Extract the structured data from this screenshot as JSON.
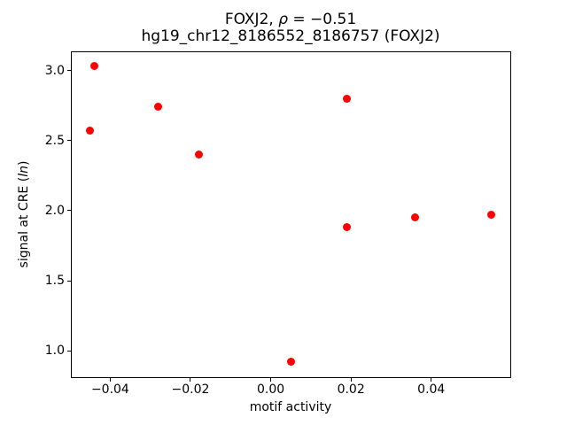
{
  "title": {
    "line1_prefix": "FOXJ2, ",
    "line1_rho": "ρ",
    "line1_suffix": " = −0.51",
    "line2": "hg19_chr12_8186552_8186757 (FOXJ2)"
  },
  "axes": {
    "xlabel": "motif activity",
    "ylabel_prefix": "signal at CRE (",
    "ylabel_italic": "ln",
    "ylabel_suffix": ")"
  },
  "chart_data": {
    "type": "scatter",
    "title": "FOXJ2, ρ = −0.51\nhg19_chr12_8186552_8186757 (FOXJ2)",
    "xlabel": "motif activity",
    "ylabel": "signal at CRE (ln)",
    "legend": "none",
    "grid": false,
    "marker_color": "#ff0000",
    "marker_diameter_px": 9,
    "xlim": [
      -0.0498,
      0.0597
    ],
    "ylim": [
      0.812,
      3.136
    ],
    "xticks": [
      -0.04,
      -0.02,
      0.0,
      0.02,
      0.04
    ],
    "xtick_labels": [
      "−0.04",
      "−0.02",
      "0.00",
      "0.02",
      "0.04"
    ],
    "yticks": [
      1.0,
      1.5,
      2.0,
      2.5,
      3.0
    ],
    "ytick_labels": [
      "1.0",
      "1.5",
      "2.0",
      "2.5",
      "3.0"
    ],
    "series": [
      {
        "name": "FOXJ2",
        "points": [
          {
            "x": -0.044,
            "y": 3.03
          },
          {
            "x": -0.045,
            "y": 2.57
          },
          {
            "x": -0.028,
            "y": 2.74
          },
          {
            "x": -0.018,
            "y": 2.4
          },
          {
            "x": 0.019,
            "y": 2.8
          },
          {
            "x": 0.019,
            "y": 1.88
          },
          {
            "x": 0.036,
            "y": 1.95
          },
          {
            "x": 0.055,
            "y": 1.97
          },
          {
            "x": 0.005,
            "y": 0.92
          }
        ]
      }
    ]
  }
}
